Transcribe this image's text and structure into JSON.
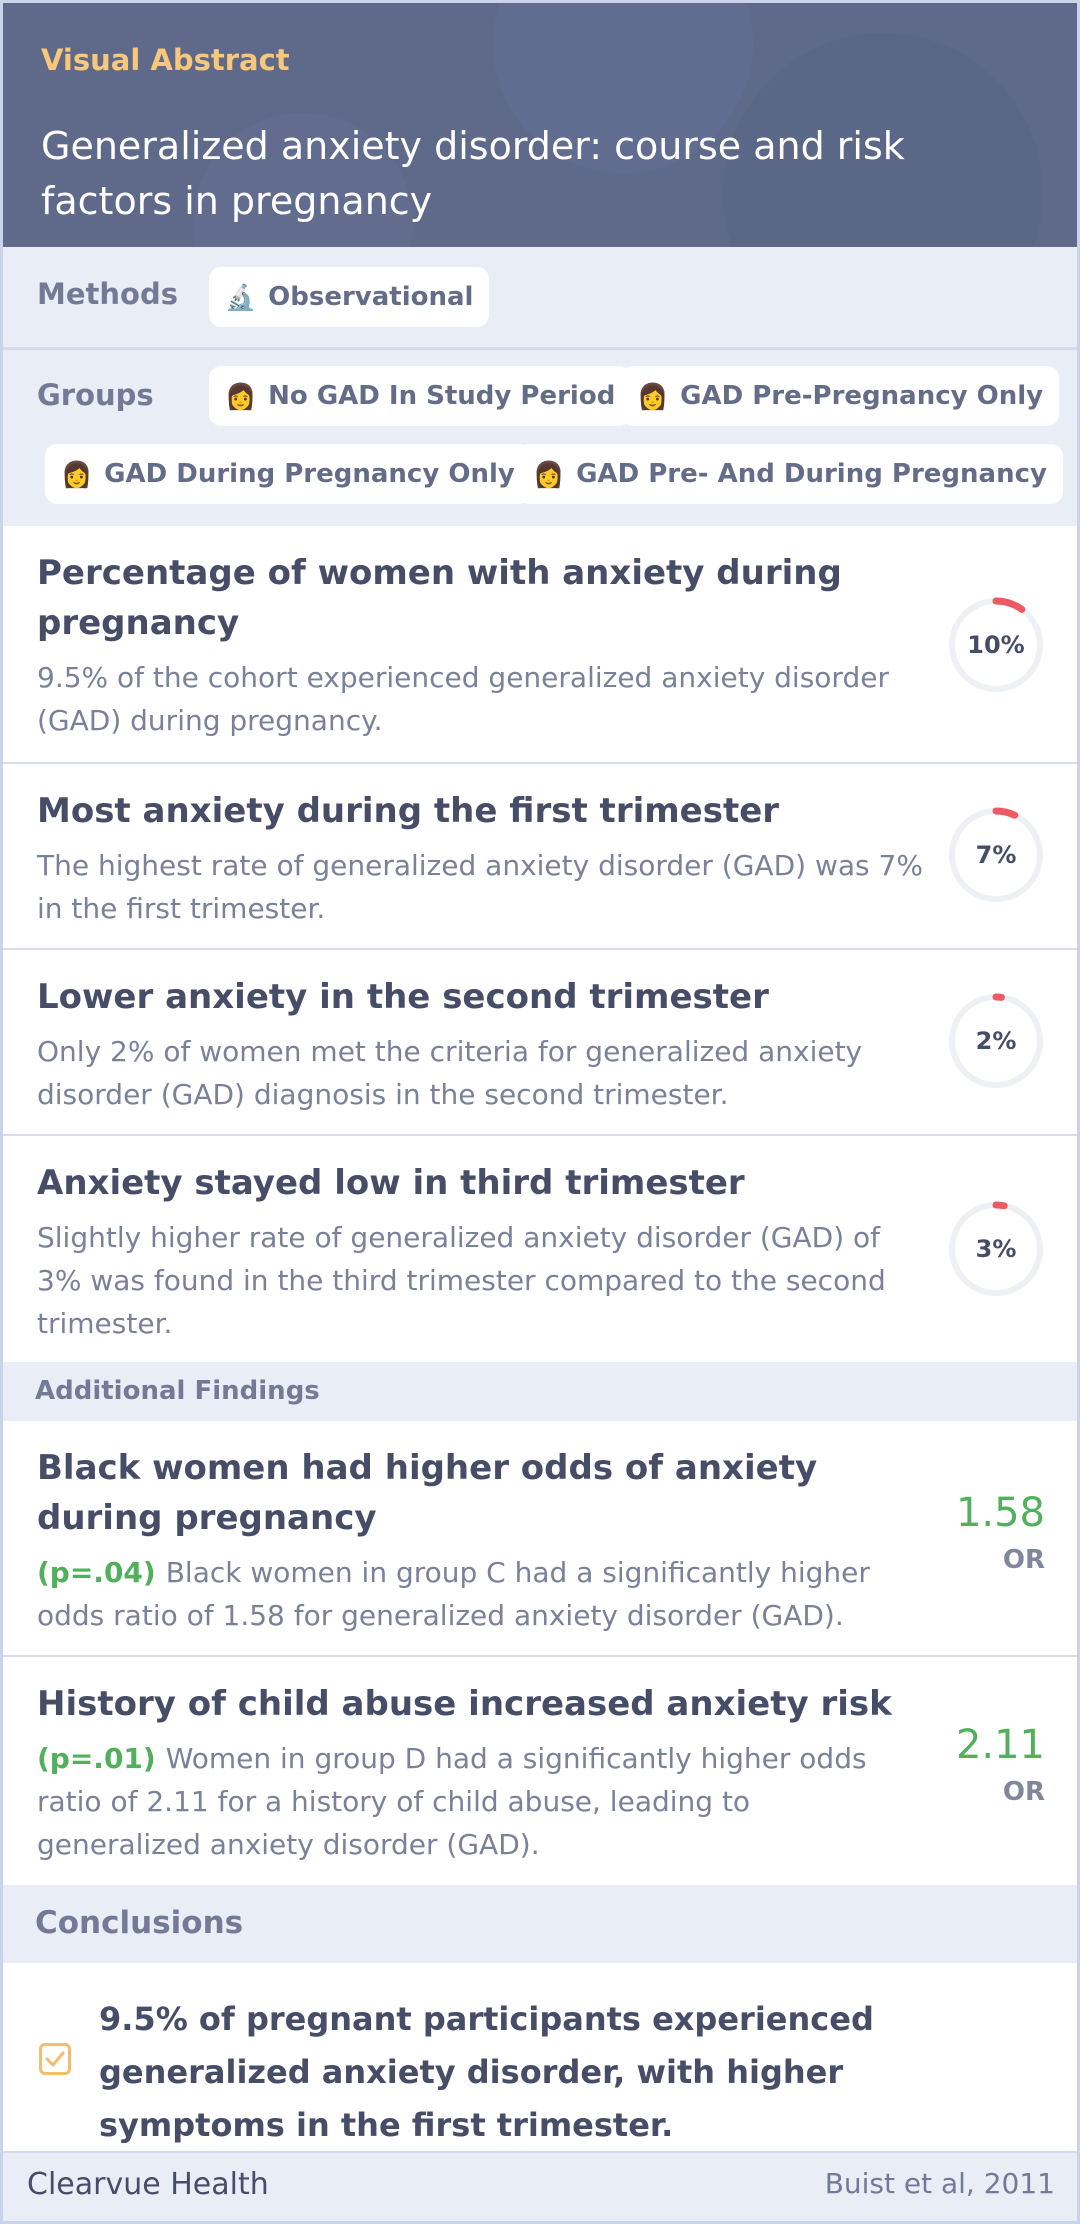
{
  "header": {
    "eyebrow": "Visual Abstract",
    "title": "Generalized anxiety disorder: course and risk factors in pregnancy"
  },
  "methods": {
    "label": "Methods",
    "chip": {
      "icon": "microscope-icon",
      "label": "Observational"
    }
  },
  "groups": {
    "label": "Groups",
    "chips": [
      {
        "icon": "woman-icon",
        "label": "No GAD In Study Period"
      },
      {
        "icon": "woman-icon",
        "label": "GAD Pre-Pregnancy Only"
      },
      {
        "icon": "woman-icon",
        "label": "GAD During Pregnancy Only"
      },
      {
        "icon": "woman-icon",
        "label": "GAD Pre- And During Pregnancy"
      }
    ]
  },
  "findings": [
    {
      "title": "Percentage of women with anxiety during pregnancy",
      "description": "9.5% of the cohort experienced generalized anxiety disorder (GAD) during pregnancy.",
      "ring_label": "10%",
      "ring_fraction": 0.1
    },
    {
      "title": "Most anxiety during the first trimester",
      "description": "The highest rate of generalized anxiety disorder (GAD) was 7% in the first trimester.",
      "ring_label": "7%",
      "ring_fraction": 0.07
    },
    {
      "title": "Lower anxiety in the second trimester",
      "description": "Only 2% of women met the criteria for generalized anxiety disorder (GAD) diagnosis in the second trimester.",
      "ring_label": "2%",
      "ring_fraction": 0.02
    },
    {
      "title": "Anxiety stayed low in third trimester",
      "description": "Slightly higher rate of generalized anxiety disorder (GAD) of 3% was found in the third trimester compared to the second trimester.",
      "ring_label": "3%",
      "ring_fraction": 0.03
    }
  ],
  "additional": {
    "label": "Additional Findings",
    "items": [
      {
        "title": "Black women had higher odds of anxiety during pregnancy",
        "p_value": "(p=.04)",
        "description": "Black women in group C had a significantly higher odds ratio of 1.58 for generalized anxiety disorder (GAD).",
        "ratio": "1.58",
        "ratio_unit": "OR"
      },
      {
        "title": "History of child abuse increased anxiety risk",
        "p_value": "(p=.01)",
        "description": "Women in group D had a significantly higher odds ratio of 2.11 for a history of child abuse, leading to generalized anxiety disorder (GAD).",
        "ratio": "2.11",
        "ratio_unit": "OR"
      }
    ]
  },
  "conclusions": {
    "label": "Conclusions",
    "text": "9.5% of pregnant participants experienced generalized anxiety disorder, with higher symptoms in the first trimester."
  },
  "footer": {
    "brand": "Clearvue Health",
    "citation": "Buist et al, 2011"
  },
  "colors": {
    "header_bg": "#5f6a8b",
    "eyebrow": "#f7c77b",
    "accent_red": "#ec5b63",
    "ring_track": "#eef0f4",
    "green": "#52b05c",
    "check": "#f2bd6c"
  }
}
